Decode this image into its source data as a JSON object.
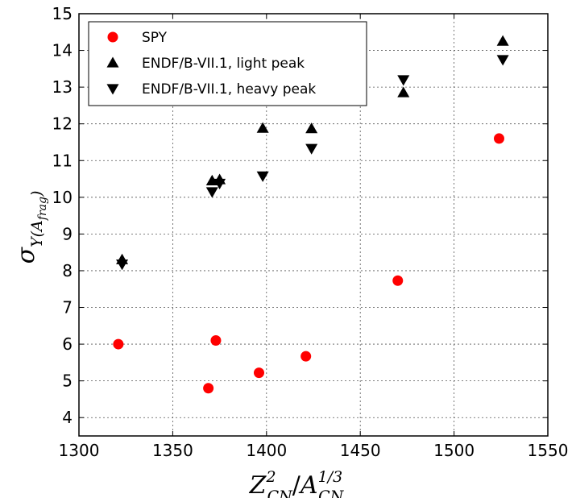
{
  "chart_data": {
    "type": "scatter",
    "title": "",
    "xlabel": {
      "base": "Z",
      "sup": "2",
      "sub": "CN",
      "slash": "/",
      "base2": "A",
      "sup2": "1/3",
      "sub2": "CN"
    },
    "ylabel": {
      "base": "σ",
      "sub": "Y(A",
      "subsub": "frag",
      "close": ")"
    },
    "xlim": [
      1300,
      1550
    ],
    "ylim": [
      3.5,
      15
    ],
    "xticks": [
      1300,
      1350,
      1400,
      1450,
      1500,
      1550
    ],
    "yticks": [
      4,
      5,
      6,
      7,
      8,
      9,
      10,
      11,
      12,
      13,
      14,
      15
    ],
    "grid": true,
    "legend_position": "top-left",
    "series": [
      {
        "name": "SPY",
        "marker": "circle",
        "color": "#ff0000",
        "points": [
          [
            1321,
            6.0
          ],
          [
            1369,
            4.8
          ],
          [
            1373,
            6.1
          ],
          [
            1396,
            5.22
          ],
          [
            1421,
            5.67
          ],
          [
            1470,
            7.73
          ],
          [
            1524,
            11.6
          ]
        ]
      },
      {
        "name": "ENDF/B-VII.1, light peak",
        "marker": "triangle-up",
        "color": "#000000",
        "points": [
          [
            1323,
            8.3
          ],
          [
            1371,
            10.45
          ],
          [
            1375,
            10.48
          ],
          [
            1398,
            11.88
          ],
          [
            1424,
            11.87
          ],
          [
            1473,
            12.85
          ],
          [
            1526,
            14.25
          ]
        ]
      },
      {
        "name": "ENDF/B-VII.1, heavy peak",
        "marker": "triangle-down",
        "color": "#000000",
        "points": [
          [
            1323,
            8.18
          ],
          [
            1371,
            10.15
          ],
          [
            1375,
            10.38
          ],
          [
            1398,
            10.58
          ],
          [
            1424,
            11.33
          ],
          [
            1473,
            13.2
          ],
          [
            1526,
            13.75
          ]
        ]
      }
    ]
  }
}
